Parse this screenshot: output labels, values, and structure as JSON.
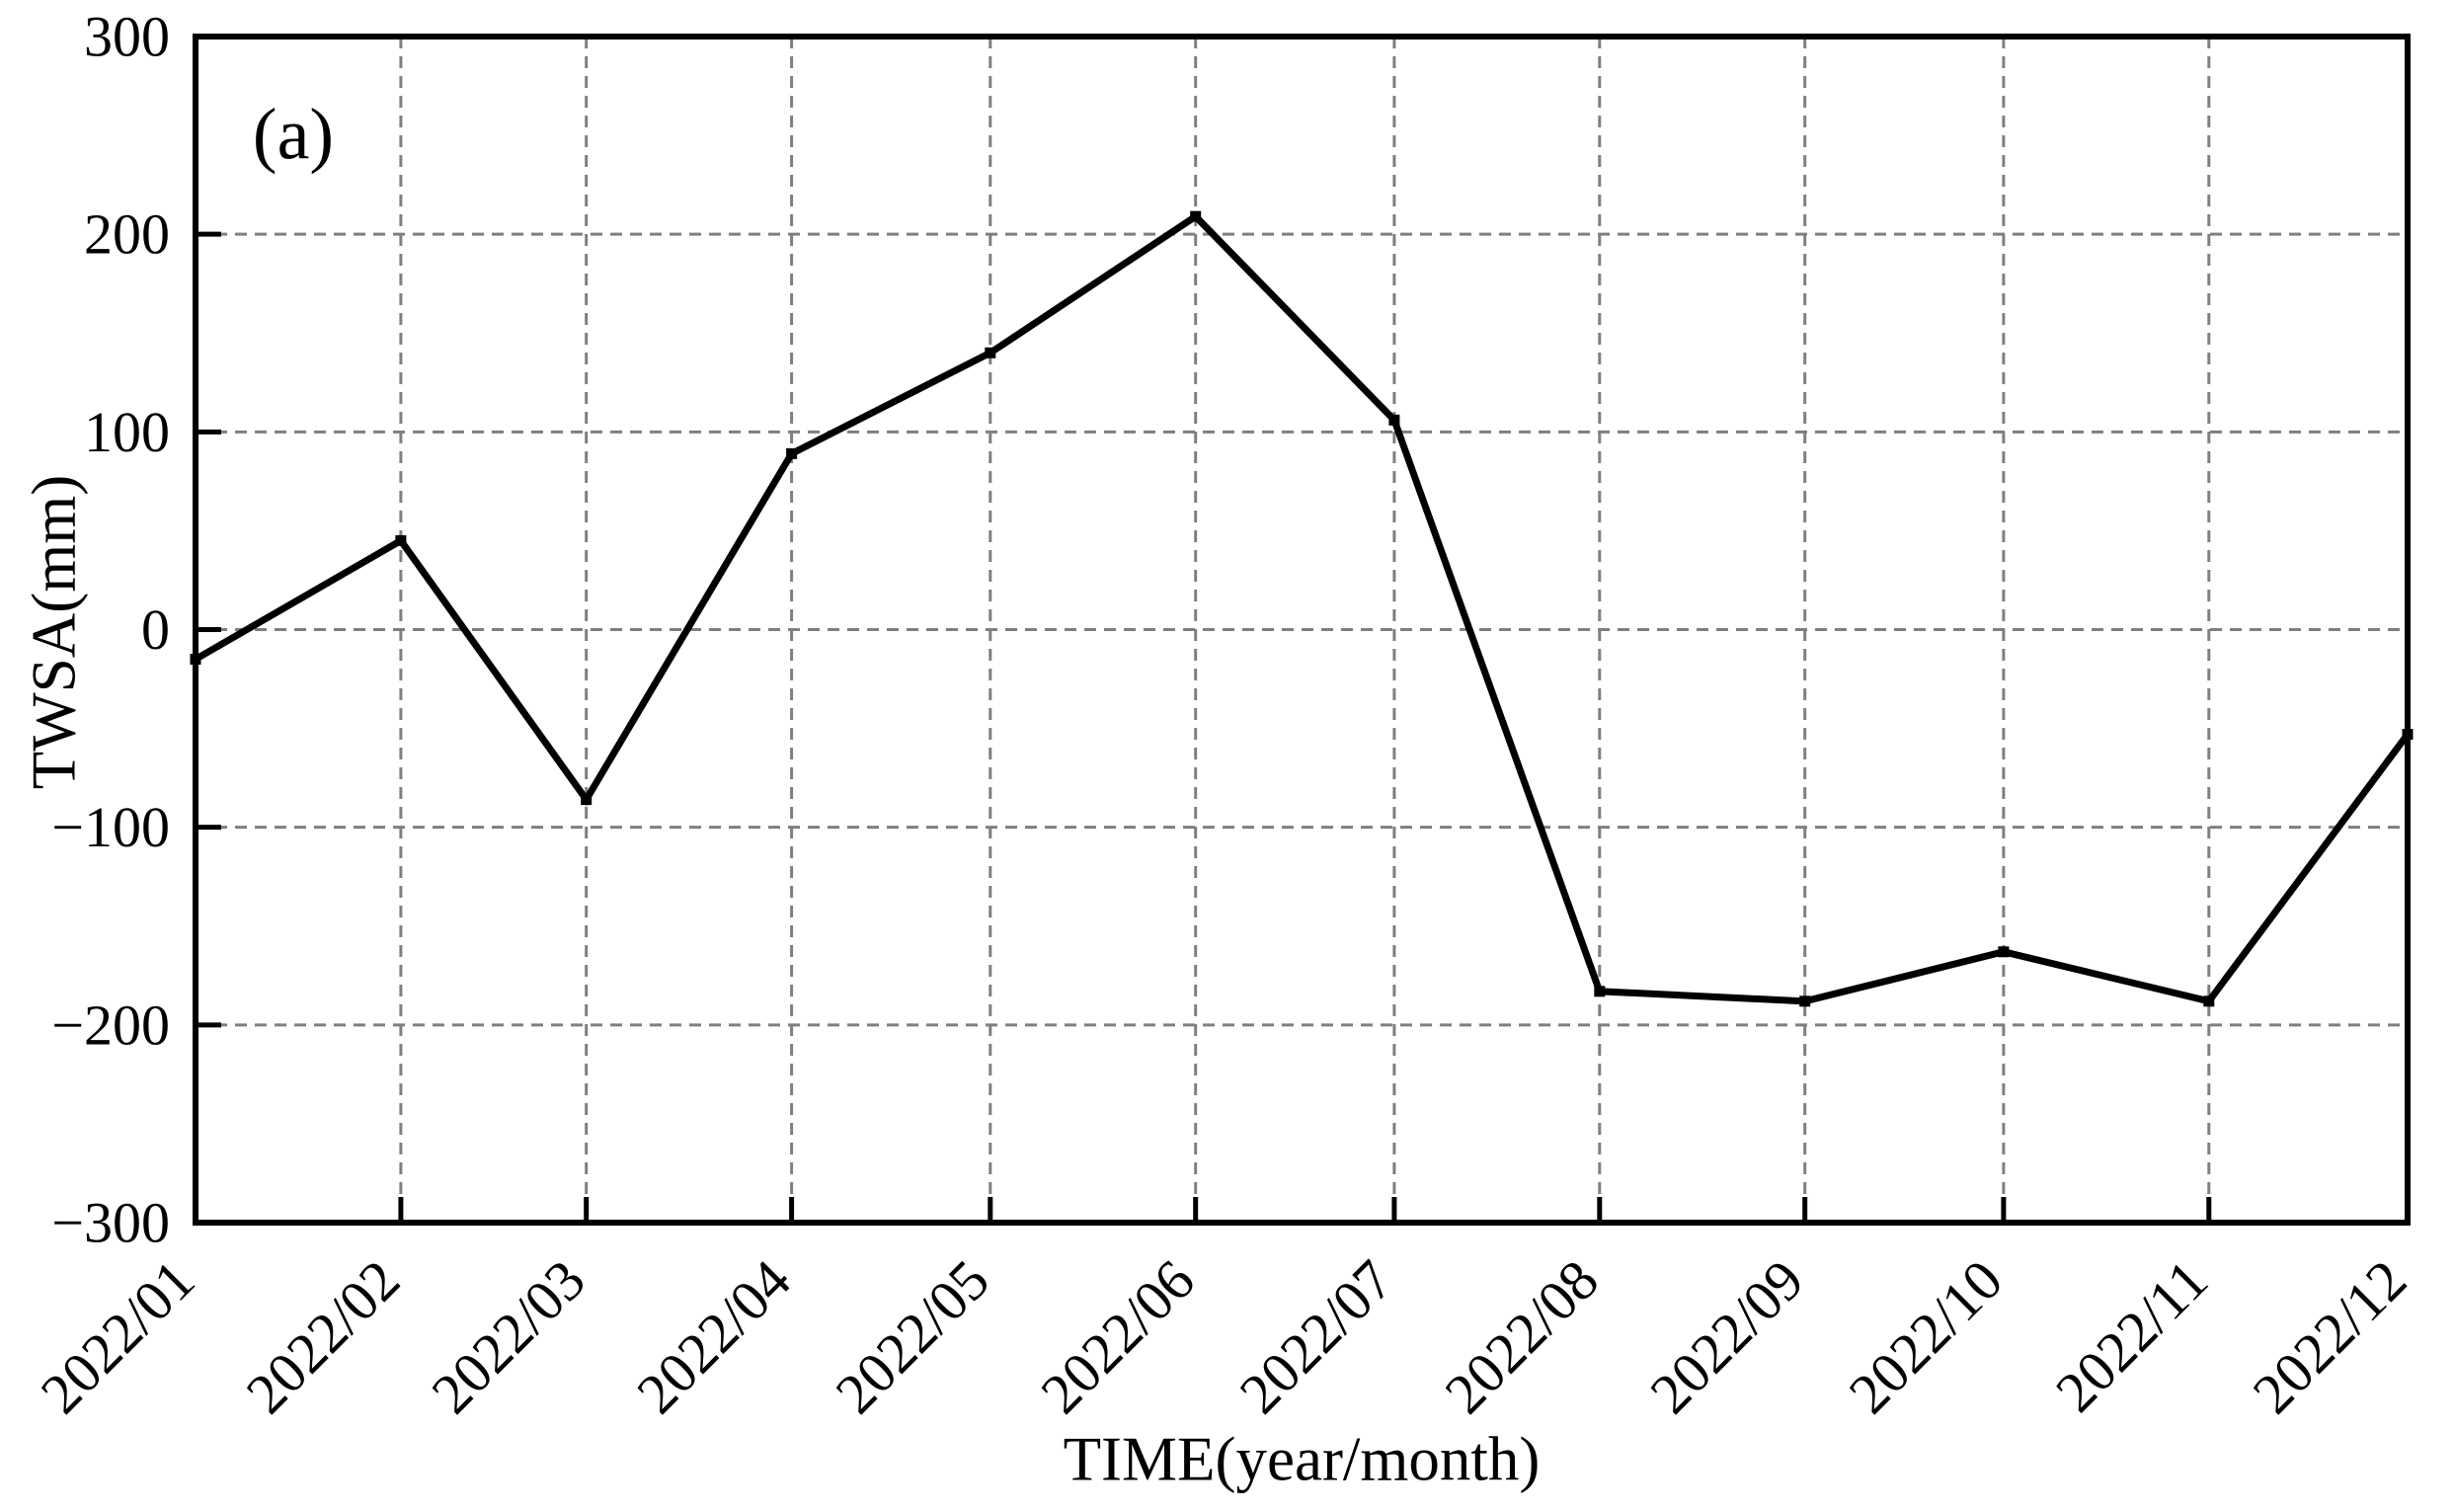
{
  "figure": {
    "panel_label": "(a)"
  },
  "chart_data": {
    "type": "line",
    "title": "",
    "xlabel": "TIME(year/month)",
    "ylabel": "TWSA(mm)",
    "categories": [
      "2022/01",
      "2022/02",
      "2022/03",
      "2022/04",
      "2022/05",
      "2022/06",
      "2022/07",
      "2022/08",
      "2022/09",
      "2022/10",
      "2022/11",
      "2022/12"
    ],
    "values": [
      -15,
      45,
      -86,
      89,
      140,
      209,
      106,
      -183,
      -188,
      -163,
      -188,
      -53
    ],
    "x_day_offsets": [
      0,
      31,
      59,
      90,
      120,
      151,
      181,
      212,
      243,
      273,
      304,
      334
    ],
    "ylim": [
      -300,
      300
    ],
    "yticks": [
      300,
      200,
      100,
      0,
      -100,
      -200,
      -300
    ],
    "ytick_labels": [
      "300",
      "200",
      "100",
      "0",
      "−100",
      "−200",
      "−300"
    ],
    "grid": true,
    "grid_style": "dashed",
    "legend_position": "none",
    "marker": "square",
    "series_color": "#000000",
    "grid_color": "#7f7f7f",
    "spine_color": "#000000",
    "background": "#ffffff"
  }
}
